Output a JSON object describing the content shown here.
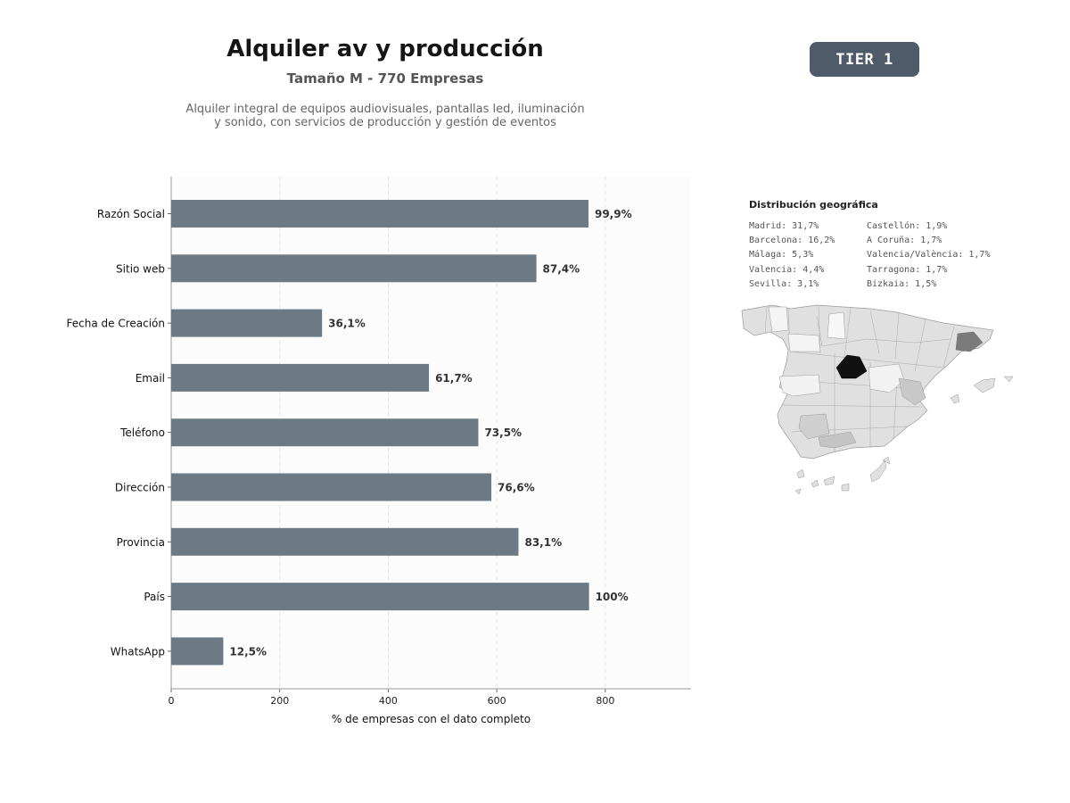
{
  "header": {
    "title": "Alquiler av y producción",
    "subtitle": "Tamaño M - 770 Empresas",
    "description_line1": "Alquiler integral de equipos audiovisuales, pantallas led, iluminación",
    "description_line2": "y sonido, con servicios de producción y gestión de eventos",
    "tier_label": "TIER 1"
  },
  "chart_data": {
    "type": "bar",
    "orientation": "horizontal",
    "categories": [
      "Razón Social",
      "Sitio web",
      "Fecha de Creación",
      "Email",
      "Teléfono",
      "Dirección",
      "Provincia",
      "País",
      "WhatsApp"
    ],
    "values": [
      769,
      673,
      278,
      475,
      566,
      590,
      640,
      770,
      96
    ],
    "data_labels": [
      "99,9%",
      "87,4%",
      "36,1%",
      "61,7%",
      "73,5%",
      "76,6%",
      "83,1%",
      "100%",
      "12,5%"
    ],
    "xlabel": "% de empresas con el dato completo",
    "ylabel": "",
    "xlim": [
      0,
      958
    ],
    "xticks": [
      0,
      200,
      400,
      600,
      800
    ],
    "grid": "vertical dashed",
    "bar_color": "#6e7a83"
  },
  "geo": {
    "title": "Distribución geográfica",
    "column1": [
      "Madrid: 31,7%",
      "Barcelona: 16,2%",
      "Málaga: 5,3%",
      "Valencia: 4,4%",
      "Sevilla: 3,1%"
    ],
    "column2": [
      "Castellón: 1,9%",
      "A Coruña: 1,7%",
      "Valencia/València: 1,7%",
      "Tarragona: 1,7%",
      "Bizkaia: 1,5%"
    ]
  },
  "colors": {
    "accent": "#4f5b68",
    "map_highest": "#111111",
    "map_high": "#7a7a7a",
    "map_mid": "#c8c8c8",
    "map_low": "#e0e0e0",
    "map_none": "#f4f4f4"
  }
}
